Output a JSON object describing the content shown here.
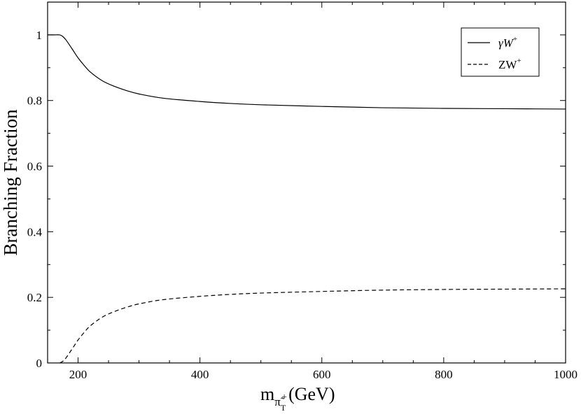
{
  "chart_data": {
    "type": "line",
    "xlabel": "m",
    "xlabel_subscript": "π̃",
    "xlabel_subsubscript": "T",
    "xlabel_supscript": "+",
    "xlabel_unit": "(GeV)",
    "ylabel": "Branching Fraction",
    "xlim": [
      150,
      1000
    ],
    "ylim": [
      0,
      1.1
    ],
    "x_ticks": [
      200,
      400,
      600,
      800,
      1000
    ],
    "y_ticks": [
      0,
      0.2,
      0.4,
      0.6,
      0.8,
      1
    ],
    "y_tick_labels": [
      "0",
      "0.2",
      "0.4",
      "0.6",
      "0.8",
      "1"
    ],
    "legend_position": "top-right",
    "series": [
      {
        "name": "γW",
        "name_sup": "+",
        "style": "solid",
        "x": [
          150,
          160,
          170,
          175,
          180,
          190,
          200,
          210,
          220,
          240,
          260,
          280,
          300,
          340,
          400,
          450,
          500,
          600,
          700,
          800,
          900,
          1000
        ],
        "y": [
          1.0,
          1.0,
          1.0,
          0.995,
          0.985,
          0.958,
          0.93,
          0.907,
          0.887,
          0.86,
          0.843,
          0.83,
          0.82,
          0.807,
          0.797,
          0.791,
          0.787,
          0.782,
          0.778,
          0.776,
          0.775,
          0.774
        ]
      },
      {
        "name": "ZW",
        "name_sup": "+",
        "style": "dashed",
        "x": [
          170,
          175,
          180,
          190,
          200,
          210,
          220,
          240,
          260,
          280,
          300,
          340,
          400,
          450,
          500,
          600,
          700,
          800,
          900,
          1000
        ],
        "y": [
          0.0,
          0.005,
          0.015,
          0.042,
          0.07,
          0.093,
          0.113,
          0.14,
          0.157,
          0.17,
          0.18,
          0.193,
          0.203,
          0.209,
          0.213,
          0.218,
          0.222,
          0.224,
          0.225,
          0.226
        ]
      }
    ]
  }
}
